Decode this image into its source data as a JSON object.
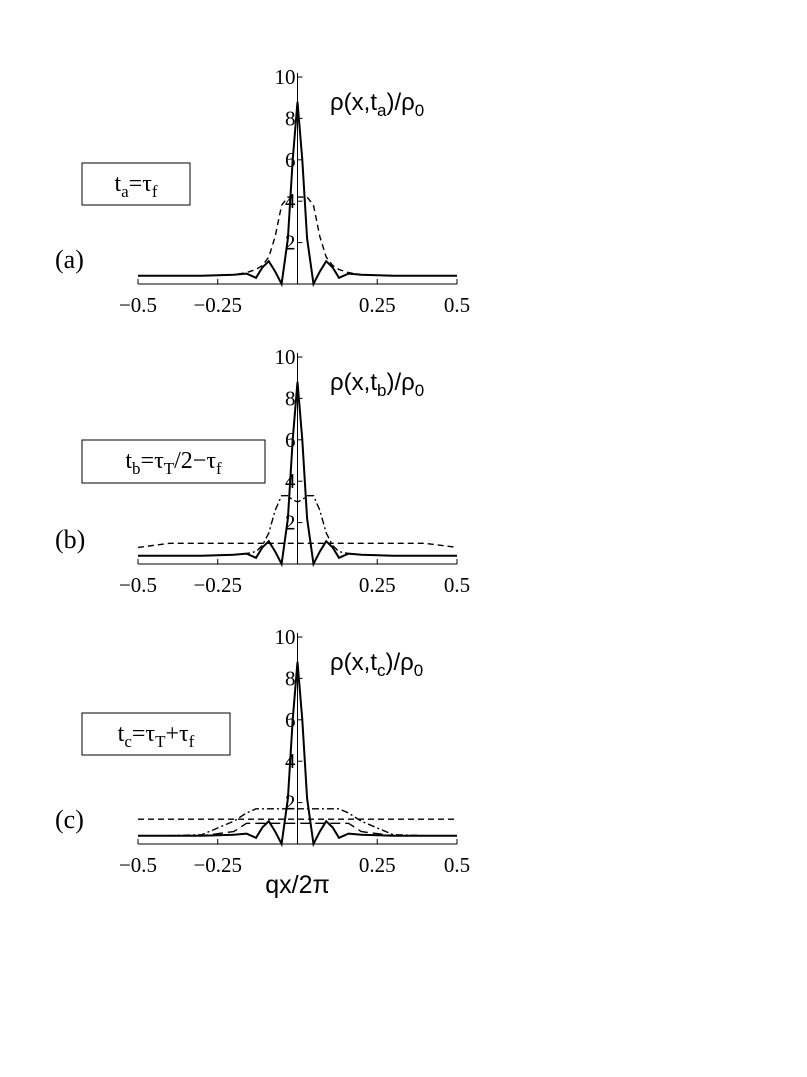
{
  "chart_data": [
    {
      "type": "line",
      "panel_label": "(a)",
      "title_parts": [
        "ρ(x,t",
        "a",
        ")/ρ",
        "0"
      ],
      "box_label_parts": [
        "t",
        "a",
        "=τ",
        "f"
      ],
      "x": [
        -0.5,
        -0.4,
        -0.3,
        -0.2,
        -0.16,
        -0.13,
        -0.11,
        -0.09,
        -0.07,
        -0.05,
        -0.03,
        -0.015,
        0,
        0.015,
        0.03,
        0.05,
        0.07,
        0.09,
        0.11,
        0.13,
        0.16,
        0.2,
        0.3,
        0.4,
        0.5
      ],
      "series": [
        {
          "color": "#000000",
          "dash": "solid",
          "values": [
            0.4,
            0.4,
            0.4,
            0.45,
            0.5,
            0.3,
            0.8,
            1.1,
            0.6,
            0,
            2.2,
            6,
            8.8,
            6,
            2.2,
            0,
            0.6,
            1.1,
            0.8,
            0.3,
            0.5,
            0.45,
            0.4,
            0.4,
            0.4
          ]
        },
        {
          "color": "#000000",
          "dash": "dashed",
          "values": [
            0.4,
            0.4,
            0.4,
            0.45,
            0.55,
            0.7,
            0.9,
            1.3,
            2.3,
            3.8,
            4.2,
            4.2,
            4.2,
            4.2,
            4.2,
            3.8,
            2.3,
            1.3,
            0.9,
            0.7,
            0.55,
            0.45,
            0.4,
            0.4,
            0.4
          ]
        }
      ],
      "xlim": [
        -0.5,
        0.5
      ],
      "ylim": [
        0,
        10
      ],
      "xticks": [
        {
          "value": -0.5,
          "label": "−0.5"
        },
        {
          "value": -0.25,
          "label": "−0.25"
        },
        0.25,
        0.5
      ],
      "yticks": [
        2,
        4,
        6,
        8,
        10
      ]
    },
    {
      "type": "line",
      "panel_label": "(b)",
      "title_parts": [
        "ρ(x,t",
        "b",
        ")/ρ",
        "0"
      ],
      "box_label_parts": [
        "t",
        "b",
        "=τ",
        "T",
        "/2−τ",
        "f"
      ],
      "x": [
        -0.5,
        -0.4,
        -0.3,
        -0.2,
        -0.16,
        -0.13,
        -0.11,
        -0.09,
        -0.07,
        -0.05,
        -0.03,
        -0.015,
        0,
        0.015,
        0.03,
        0.05,
        0.07,
        0.09,
        0.11,
        0.13,
        0.16,
        0.2,
        0.3,
        0.4,
        0.5
      ],
      "series": [
        {
          "color": "#000000",
          "dash": "solid",
          "values": [
            0.4,
            0.4,
            0.4,
            0.45,
            0.5,
            0.3,
            0.8,
            1.1,
            0.6,
            0,
            2.2,
            6,
            8.8,
            6,
            2.2,
            0,
            0.6,
            1.1,
            0.8,
            0.3,
            0.5,
            0.45,
            0.4,
            0.4,
            0.4
          ]
        },
        {
          "color": "#000000",
          "dash": "dash-dot",
          "values": [
            0.4,
            0.4,
            0.4,
            0.45,
            0.5,
            0.6,
            0.9,
            1.5,
            2.6,
            3.3,
            3.3,
            3.1,
            3.0,
            3.1,
            3.3,
            3.3,
            2.6,
            1.5,
            0.9,
            0.6,
            0.5,
            0.45,
            0.4,
            0.4,
            0.4
          ]
        },
        {
          "color": "#000000",
          "dash": "dashed",
          "values": [
            0.8,
            1.0,
            1.0,
            1.0,
            1.0,
            1.0,
            1.0,
            1.0,
            1.0,
            1.0,
            1.0,
            1.0,
            1.0,
            1.0,
            1.0,
            1.0,
            1.0,
            1.0,
            1.0,
            1.0,
            1.0,
            1.0,
            1.0,
            1.0,
            0.8
          ]
        }
      ],
      "xlim": [
        -0.5,
        0.5
      ],
      "ylim": [
        0,
        10
      ],
      "xticks": [
        {
          "value": -0.5,
          "label": "−0.5"
        },
        {
          "value": -0.25,
          "label": "−0.25"
        },
        0.25,
        0.5
      ],
      "yticks": [
        2,
        4,
        6,
        8,
        10
      ]
    },
    {
      "type": "line",
      "panel_label": "(c)",
      "title_parts": [
        "ρ(x,t",
        "c",
        ")/ρ",
        "0"
      ],
      "box_label_parts": [
        "t",
        "c",
        "=τ",
        "T",
        "+τ",
        "f"
      ],
      "xlabel": "qx/2π",
      "x": [
        -0.5,
        -0.4,
        -0.3,
        -0.2,
        -0.16,
        -0.13,
        -0.11,
        -0.09,
        -0.07,
        -0.05,
        -0.03,
        -0.015,
        0,
        0.015,
        0.03,
        0.05,
        0.07,
        0.09,
        0.11,
        0.13,
        0.16,
        0.2,
        0.3,
        0.4,
        0.5
      ],
      "series": [
        {
          "color": "#000000",
          "dash": "solid",
          "values": [
            0.4,
            0.4,
            0.4,
            0.45,
            0.5,
            0.3,
            0.8,
            1.1,
            0.6,
            0,
            2.2,
            6,
            8.8,
            6,
            2.2,
            0,
            0.6,
            1.1,
            0.8,
            0.3,
            0.5,
            0.45,
            0.4,
            0.4,
            0.4
          ]
        },
        {
          "color": "#000000",
          "dash": "dash-dot",
          "values": [
            0.4,
            0.4,
            0.45,
            1.1,
            1.5,
            1.7,
            1.7,
            1.7,
            1.7,
            1.7,
            1.7,
            1.7,
            1.7,
            1.7,
            1.7,
            1.7,
            1.7,
            1.7,
            1.7,
            1.7,
            1.5,
            1.1,
            0.45,
            0.4,
            0.4
          ]
        },
        {
          "color": "#000000",
          "dash": "dashed",
          "values": [
            1.2,
            1.2,
            1.2,
            1.2,
            1.2,
            1.2,
            1.2,
            1.2,
            1.2,
            1.2,
            1.2,
            1.2,
            1.2,
            1.2,
            1.2,
            1.2,
            1.2,
            1.2,
            1.2,
            1.2,
            1.2,
            1.2,
            1.2,
            1.2,
            1.2
          ]
        },
        {
          "color": "#000000",
          "dash": "long-dashed",
          "values": [
            0.4,
            0.4,
            0.4,
            0.6,
            1.0,
            1.0,
            1.0,
            1.0,
            1.0,
            1.0,
            1.0,
            1.0,
            1.0,
            1.0,
            1.0,
            1.0,
            1.0,
            1.0,
            1.0,
            1.0,
            1.0,
            0.6,
            0.4,
            0.4,
            0.4
          ]
        }
      ],
      "xlim": [
        -0.5,
        0.5
      ],
      "ylim": [
        0,
        10
      ],
      "xticks": [
        {
          "value": -0.5,
          "label": "−0.5"
        },
        {
          "value": -0.25,
          "label": "−0.25"
        },
        0.25,
        0.5
      ],
      "yticks": [
        2,
        4,
        6,
        8,
        10
      ]
    }
  ]
}
